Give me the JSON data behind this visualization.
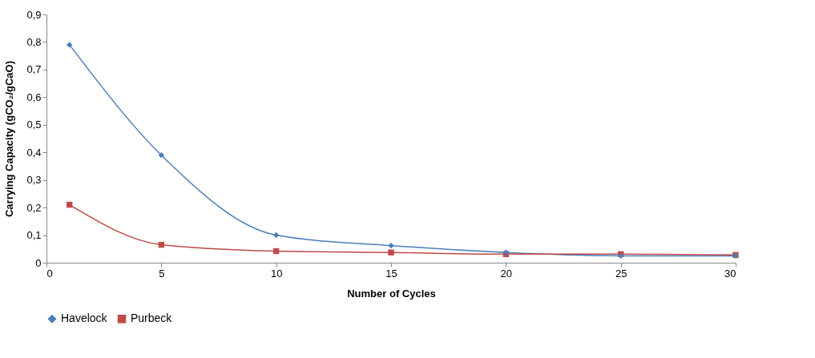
{
  "chart_data": {
    "type": "line",
    "xlabel": "Number of Cycles",
    "ylabel": "Carrying Capacity  (gCO₂/gCaO)",
    "x": [
      1,
      5,
      10,
      15,
      20,
      25,
      30
    ],
    "series": [
      {
        "name": "Havelock",
        "color": "#4a7ebb",
        "marker": "diamond",
        "values": [
          0.79,
          0.39,
          0.1,
          0.062,
          0.037,
          0.025,
          0.025
        ]
      },
      {
        "name": "Purbeck",
        "color": "#be4b48",
        "marker": "square",
        "values": [
          0.21,
          0.065,
          0.042,
          0.037,
          0.031,
          0.031,
          0.028
        ]
      }
    ],
    "xlim": [
      0,
      30
    ],
    "xticks": [
      0,
      5,
      10,
      15,
      20,
      25,
      30
    ],
    "ylim": [
      0,
      0.9
    ],
    "yticks": [
      0,
      {
        "value": 0.1,
        "label": "0,1"
      },
      {
        "value": 0.2,
        "label": "0,2"
      },
      {
        "value": 0.3,
        "label": "0,3"
      },
      {
        "value": 0.4,
        "label": "0,4"
      },
      {
        "value": 0.5,
        "label": "0,5"
      },
      {
        "value": 0.6,
        "label": "0,6"
      },
      {
        "value": 0.7,
        "label": "0,7"
      },
      {
        "value": 0.8,
        "label": "0,8"
      },
      {
        "value": 0.9,
        "label": "0,9"
      }
    ],
    "grid": false,
    "legend": "bottom",
    "line_style": "solid"
  }
}
